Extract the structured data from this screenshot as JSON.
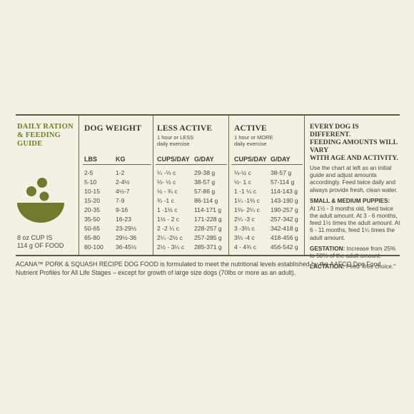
{
  "guide": {
    "title_line1": "DAILY RATION",
    "title_line2": "& FEEDING",
    "title_line3": "GUIDE",
    "cup_note_line1": "8 oz CUP IS",
    "cup_note_line2": "114 g OF FOOD",
    "bowl_color": "#6f7a2c"
  },
  "columns": {
    "dog_weight": "DOG WEIGHT",
    "less_active": "LESS ACTIVE",
    "less_active_sub1": "1 hour or LESS",
    "less_active_sub2": "daily exercise",
    "active": "ACTIVE",
    "active_sub1": "1 hour or MORE",
    "active_sub2": "daily exercise"
  },
  "subheaders": {
    "lbs": "LBS",
    "kg": "KG",
    "cups_less": "CUPS/DAY",
    "g_less": "G/DAY",
    "cups_active": "CUPS/DAY",
    "g_active": "G/DAY"
  },
  "rows": [
    {
      "lbs": "2-5",
      "kg": "1-2",
      "cups_less": "¼ -⅓ c",
      "g_less": "29-38 g",
      "cups_active": "⅓-½ c",
      "g_active": "38-57 g"
    },
    {
      "lbs": "5-10",
      "kg": "2-4½",
      "cups_less": "⅓- ½ c",
      "g_less": "38-57 g",
      "cups_active": "½- 1 c",
      "g_active": "57-114 g"
    },
    {
      "lbs": "10-15",
      "kg": "4½-7",
      "cups_less": "½ - ¾ c",
      "g_less": "57-86 g",
      "cups_active": "1 -1 ¼ c",
      "g_active": "114-143 g"
    },
    {
      "lbs": "15-20",
      "kg": "7-9",
      "cups_less": "¾ -1 c",
      "g_less": "86-114 g",
      "cups_active": "1¼ -1⅔ c",
      "g_active": "143-190 g"
    },
    {
      "lbs": "20-35",
      "kg": "9-16",
      "cups_less": "1 -1½ c",
      "g_less": "114-171 g",
      "cups_active": "1⅔- 2¼ c",
      "g_active": "190-257 g"
    },
    {
      "lbs": "35-50",
      "kg": "16-23",
      "cups_less": "1½ - 2 c",
      "g_less": "171-228 g",
      "cups_active": "2¼ -3 c",
      "g_active": "257-342 g"
    },
    {
      "lbs": "50-65",
      "kg": "23-29½",
      "cups_less": "2 -2 ¼ c",
      "g_less": "228-257 g",
      "cups_active": "3 -3⅔ c",
      "g_active": "342-418 g"
    },
    {
      "lbs": "65-80",
      "kg": "29½-36",
      "cups_less": "2¼ -2½ c",
      "g_less": "257-285 g",
      "cups_active": "3⅔ -4 c",
      "g_active": "418-456 g"
    },
    {
      "lbs": "80-100",
      "kg": "36-45½",
      "cups_less": "2½ - 3¼ c",
      "g_less": "285-371 g",
      "cups_active": "4 - 4¾ c",
      "g_active": "456-542 g"
    }
  ],
  "notes": {
    "heading_line1": "EVERY DOG IS DIFFERENT.",
    "heading_line2": "FEEDING AMOUNTS WILL VARY",
    "heading_line3": "WITH AGE AND ACTIVITY.",
    "intro": "Use the chart at left as an initial guide and adjust amounts accordingly. Feed twice daily and always provide fresh, clean water.",
    "puppies_heading": "SMALL & MEDIUM PUPPIES:",
    "puppies_text": "At 1½ - 3 months old, feed twice the adult amount. At 3 - 6 months, feed 1½ times the adult amount. At 6 - 11 months, feed 1¼ times the adult amount.",
    "gestation_label": "GESTATION:",
    "gestation_text": " Increase from 25% to 50% of the adult amount.",
    "lactation_label": "LACTATION:",
    "lactation_text": " Feed \"free choice.\""
  },
  "footer": "ACANA™ PORK & SQUASH RECIPE DOG FOOD is formulated to meet the nutritional levels established by the AAFCO Dog Food Nutrient Profiles for All Life Stages – except for growth of large size dogs (70lbs or more as an adult)."
}
